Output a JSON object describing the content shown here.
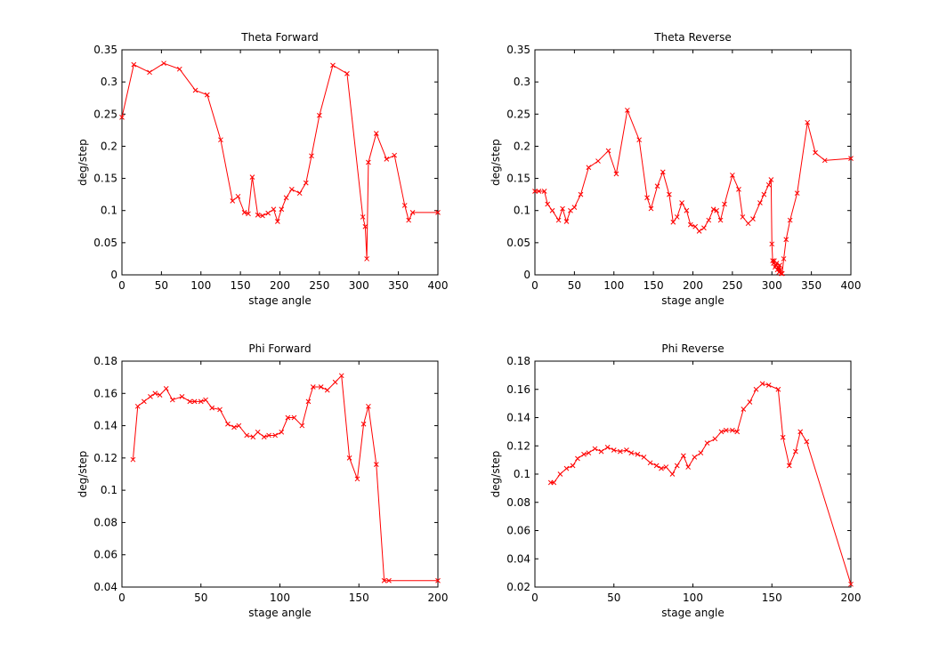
{
  "figure": {
    "background": "#ffffff",
    "line_color": "#ff0000",
    "marker": "x"
  },
  "chart_data": [
    {
      "type": "line",
      "title": "Theta Forward",
      "xlabel": "stage angle",
      "ylabel": "deg/step",
      "xlim": [
        0,
        400
      ],
      "ylim": [
        0,
        0.35
      ],
      "xticks": [
        0,
        50,
        100,
        150,
        200,
        250,
        300,
        350,
        400
      ],
      "yticks": [
        0,
        0.05,
        0.1,
        0.15,
        0.2,
        0.25,
        0.3,
        0.35
      ],
      "grid": false,
      "series": [
        {
          "color": "#ff0000",
          "marker": "x",
          "x": [
            0,
            15,
            35,
            53,
            73,
            93,
            108,
            125,
            140,
            147,
            155,
            160,
            165,
            172,
            178,
            185,
            192,
            197,
            202,
            208,
            215,
            225,
            233,
            240,
            250,
            267,
            285,
            305,
            308,
            310,
            312,
            322,
            335,
            345,
            358,
            363,
            368,
            400
          ],
          "y": [
            0.245,
            0.327,
            0.315,
            0.329,
            0.32,
            0.287,
            0.28,
            0.21,
            0.115,
            0.122,
            0.097,
            0.095,
            0.152,
            0.093,
            0.092,
            0.096,
            0.102,
            0.083,
            0.102,
            0.12,
            0.133,
            0.127,
            0.143,
            0.185,
            0.248,
            0.326,
            0.313,
            0.09,
            0.075,
            0.025,
            0.175,
            0.22,
            0.18,
            0.186,
            0.108,
            0.085,
            0.097,
            0.097
          ]
        }
      ]
    },
    {
      "type": "line",
      "title": "Theta Reverse",
      "xlabel": "stage angle",
      "ylabel": "deg/step",
      "xlim": [
        0,
        400
      ],
      "ylim": [
        0,
        0.35
      ],
      "xticks": [
        0,
        50,
        100,
        150,
        200,
        250,
        300,
        350,
        400
      ],
      "yticks": [
        0,
        0.05,
        0.1,
        0.15,
        0.2,
        0.25,
        0.3,
        0.35
      ],
      "grid": false,
      "series": [
        {
          "color": "#ff0000",
          "marker": "x",
          "x": [
            0,
            5,
            12,
            16,
            22,
            30,
            35,
            40,
            45,
            50,
            58,
            68,
            80,
            93,
            103,
            117,
            132,
            142,
            147,
            155,
            162,
            170,
            175,
            180,
            186,
            192,
            197,
            203,
            208,
            214,
            220,
            226,
            230,
            235,
            240,
            250,
            258,
            263,
            270,
            276,
            285,
            290,
            296,
            299,
            300,
            301,
            302,
            303,
            304,
            305,
            306,
            307,
            308,
            309,
            310,
            311,
            312,
            313,
            315,
            318,
            323,
            332,
            345,
            355,
            367,
            400
          ],
          "y": [
            0.13,
            0.13,
            0.13,
            0.11,
            0.1,
            0.085,
            0.103,
            0.083,
            0.1,
            0.105,
            0.125,
            0.167,
            0.177,
            0.193,
            0.157,
            0.256,
            0.21,
            0.12,
            0.103,
            0.138,
            0.16,
            0.125,
            0.082,
            0.09,
            0.112,
            0.1,
            0.078,
            0.075,
            0.068,
            0.073,
            0.085,
            0.102,
            0.1,
            0.085,
            0.11,
            0.155,
            0.133,
            0.09,
            0.08,
            0.087,
            0.112,
            0.125,
            0.14,
            0.148,
            0.048,
            0.022,
            0.018,
            0.022,
            0.012,
            0.015,
            0.018,
            0.008,
            0.012,
            0.004,
            0.015,
            0.008,
            0.002,
            0.002,
            0.025,
            0.055,
            0.085,
            0.127,
            0.237,
            0.19,
            0.178,
            0.181
          ]
        }
      ]
    },
    {
      "type": "line",
      "title": "Phi Forward",
      "xlabel": "stage angle",
      "ylabel": "deg/step",
      "xlim": [
        0,
        200
      ],
      "ylim": [
        0.04,
        0.18
      ],
      "xticks": [
        0,
        50,
        100,
        150,
        200
      ],
      "yticks": [
        0.04,
        0.06,
        0.08,
        0.1,
        0.12,
        0.14,
        0.16,
        0.18
      ],
      "grid": false,
      "series": [
        {
          "color": "#ff0000",
          "marker": "x",
          "x": [
            7,
            10,
            14,
            18,
            21,
            24,
            28,
            32,
            38,
            43,
            46,
            50,
            53,
            57,
            62,
            67,
            71,
            74,
            79,
            83,
            86,
            90,
            93,
            97,
            101,
            105,
            109,
            114,
            118,
            121,
            126,
            130,
            135,
            139,
            144,
            149,
            153,
            156,
            161,
            166,
            169,
            200
          ],
          "y": [
            0.119,
            0.152,
            0.155,
            0.158,
            0.16,
            0.159,
            0.163,
            0.156,
            0.158,
            0.155,
            0.155,
            0.155,
            0.156,
            0.151,
            0.15,
            0.141,
            0.139,
            0.14,
            0.134,
            0.133,
            0.136,
            0.133,
            0.134,
            0.134,
            0.136,
            0.145,
            0.145,
            0.14,
            0.155,
            0.164,
            0.164,
            0.162,
            0.167,
            0.171,
            0.12,
            0.107,
            0.141,
            0.152,
            0.116,
            0.044,
            0.044,
            0.044
          ]
        }
      ]
    },
    {
      "type": "line",
      "title": "Phi Reverse",
      "xlabel": "stage angle",
      "ylabel": "deg/step",
      "xlim": [
        0,
        200
      ],
      "ylim": [
        0.02,
        0.18
      ],
      "xticks": [
        0,
        50,
        100,
        150,
        200
      ],
      "yticks": [
        0.02,
        0.04,
        0.06,
        0.08,
        0.1,
        0.12,
        0.14,
        0.16,
        0.18
      ],
      "grid": false,
      "series": [
        {
          "color": "#ff0000",
          "marker": "x",
          "x": [
            10,
            12,
            16,
            20,
            24,
            27,
            31,
            34,
            38,
            42,
            46,
            50,
            54,
            58,
            61,
            65,
            69,
            73,
            77,
            80,
            83,
            87,
            90,
            94,
            97,
            101,
            105,
            109,
            114,
            118,
            121,
            125,
            128,
            132,
            136,
            140,
            144,
            148,
            154,
            157,
            161,
            165,
            168,
            172,
            200
          ],
          "y": [
            0.094,
            0.094,
            0.1,
            0.104,
            0.106,
            0.111,
            0.114,
            0.115,
            0.118,
            0.116,
            0.119,
            0.117,
            0.116,
            0.117,
            0.115,
            0.114,
            0.112,
            0.108,
            0.106,
            0.104,
            0.105,
            0.1,
            0.106,
            0.113,
            0.105,
            0.112,
            0.115,
            0.122,
            0.125,
            0.13,
            0.131,
            0.131,
            0.13,
            0.146,
            0.151,
            0.16,
            0.164,
            0.163,
            0.16,
            0.126,
            0.106,
            0.116,
            0.13,
            0.123,
            0.022
          ]
        }
      ]
    }
  ]
}
